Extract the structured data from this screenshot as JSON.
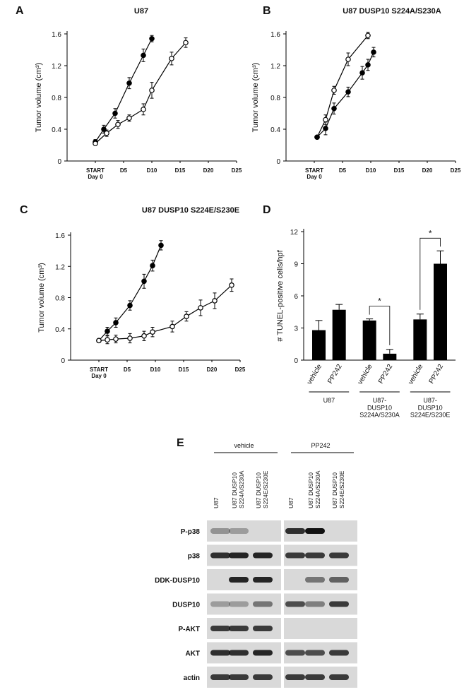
{
  "chart_data": [
    {
      "panel": "A",
      "type": "line",
      "title": "U87",
      "ylabel": "Tumor volume (cm³)",
      "xlim": [
        -5,
        25
      ],
      "xticks": [
        {
          "value": 0,
          "label": "START\nDay 0"
        },
        {
          "value": 5,
          "label": "D5"
        },
        {
          "value": 10,
          "label": "D10"
        },
        {
          "value": 15,
          "label": "D15"
        },
        {
          "value": 20,
          "label": "D20"
        },
        {
          "value": 25,
          "label": "D25"
        }
      ],
      "ylim": [
        0,
        1.6
      ],
      "yticks": [
        0,
        0.4,
        0.8,
        1.2,
        1.6
      ],
      "series": [
        {
          "marker": "filled",
          "color": "#000000",
          "x": [
            0,
            1.5,
            3.5,
            6,
            8.5,
            10
          ],
          "values": [
            0.24,
            0.4,
            0.6,
            0.98,
            1.33,
            1.54
          ],
          "errors": [
            0.03,
            0.05,
            0.06,
            0.07,
            0.08,
            0.04
          ]
        },
        {
          "marker": "open",
          "color": "#000000",
          "x": [
            0,
            2,
            4,
            6,
            8.5,
            10,
            13.5,
            16
          ],
          "values": [
            0.22,
            0.35,
            0.46,
            0.54,
            0.65,
            0.89,
            1.29,
            1.49
          ],
          "errors": [
            0.02,
            0.04,
            0.05,
            0.04,
            0.07,
            0.1,
            0.08,
            0.06
          ]
        }
      ]
    },
    {
      "panel": "B",
      "type": "line",
      "title": "U87 DUSP10 S224A/S230A",
      "ylabel": "Tumor volume (cm³)",
      "xlim": [
        -5,
        25
      ],
      "xticks": [
        {
          "value": 0,
          "label": "START\nDay 0"
        },
        {
          "value": 5,
          "label": "D5"
        },
        {
          "value": 10,
          "label": "D10"
        },
        {
          "value": 15,
          "label": "D15"
        },
        {
          "value": 20,
          "label": "D20"
        },
        {
          "value": 25,
          "label": "D25"
        }
      ],
      "ylim": [
        0,
        1.6
      ],
      "yticks": [
        0,
        0.4,
        0.8,
        1.2,
        1.6
      ],
      "series": [
        {
          "marker": "open",
          "color": "#000000",
          "x": [
            0.5,
            2,
            3.5,
            6,
            9.5
          ],
          "values": [
            0.3,
            0.52,
            0.89,
            1.28,
            1.58
          ],
          "errors": [
            0.02,
            0.06,
            0.05,
            0.08,
            0.04
          ]
        },
        {
          "marker": "filled",
          "color": "#000000",
          "x": [
            0.5,
            2,
            3.5,
            6,
            8.5,
            9.5,
            10.5
          ],
          "values": [
            0.3,
            0.41,
            0.66,
            0.87,
            1.11,
            1.21,
            1.37
          ],
          "errors": [
            0.02,
            0.08,
            0.07,
            0.06,
            0.08,
            0.07,
            0.06
          ]
        }
      ]
    },
    {
      "panel": "C",
      "type": "line",
      "title": "U87 DUSP10 S224E/S230E",
      "ylabel": "Tumor volume (cm³)",
      "xlim": [
        -5,
        25
      ],
      "xticks": [
        {
          "value": 0,
          "label": "START\nDay 0"
        },
        {
          "value": 5,
          "label": "D5"
        },
        {
          "value": 10,
          "label": "D10"
        },
        {
          "value": 15,
          "label": "D15"
        },
        {
          "value": 20,
          "label": "D20"
        },
        {
          "value": 25,
          "label": "D25"
        }
      ],
      "ylim": [
        0,
        1.6
      ],
      "yticks": [
        0,
        0.4,
        0.8,
        1.2,
        1.6
      ],
      "series": [
        {
          "marker": "filled",
          "color": "#000000",
          "x": [
            0,
            1.5,
            3,
            5.5,
            8,
            9.5,
            11
          ],
          "values": [
            0.25,
            0.37,
            0.48,
            0.7,
            1.01,
            1.21,
            1.47
          ],
          "errors": [
            0.02,
            0.05,
            0.06,
            0.06,
            0.09,
            0.07,
            0.06
          ]
        },
        {
          "marker": "open",
          "color": "#000000",
          "x": [
            0,
            1.5,
            3,
            5.5,
            8,
            9.5,
            13,
            15.5,
            18,
            20.5,
            23.5
          ],
          "values": [
            0.25,
            0.26,
            0.27,
            0.28,
            0.31,
            0.36,
            0.43,
            0.56,
            0.67,
            0.76,
            0.96
          ],
          "errors": [
            0.02,
            0.05,
            0.05,
            0.06,
            0.06,
            0.06,
            0.07,
            0.06,
            0.1,
            0.1,
            0.08
          ]
        }
      ]
    },
    {
      "panel": "D",
      "type": "bar",
      "ylabel": "# TUNEL-positive cells/hpf",
      "ylim": [
        0,
        12
      ],
      "yticks": [
        0,
        3,
        6,
        9,
        12
      ],
      "color": "#000000",
      "categories": [
        "vehicle",
        "PP242",
        "vehicle",
        "PP242",
        "vehicle",
        "PP242"
      ],
      "values": [
        2.8,
        4.7,
        3.7,
        0.6,
        3.8,
        9.0
      ],
      "errors": [
        0.9,
        0.5,
        0.15,
        0.4,
        0.5,
        1.2
      ],
      "groups": [
        "U87",
        "U87-\nDUSP10\nS224A/S230A",
        "U87-\nDUSP10\nS224E/S230E"
      ],
      "significance": [
        null,
        "*",
        "*"
      ]
    }
  ],
  "blot": {
    "panel": "E",
    "groups": [
      "vehicle",
      "PP242"
    ],
    "lanes": [
      "U87",
      "U87 DUSP10\nS224A/S230A",
      "U87 DUSP10\nS224E/S230E",
      "U87",
      "U87 DUSP10\nS224A/S230A",
      "U87 DUSP10\nS224E/S230E"
    ],
    "rows": [
      "P-p38",
      "p38",
      "DDK-DUSP10",
      "DUSP10",
      "P-AKT",
      "AKT",
      "actin"
    ]
  }
}
